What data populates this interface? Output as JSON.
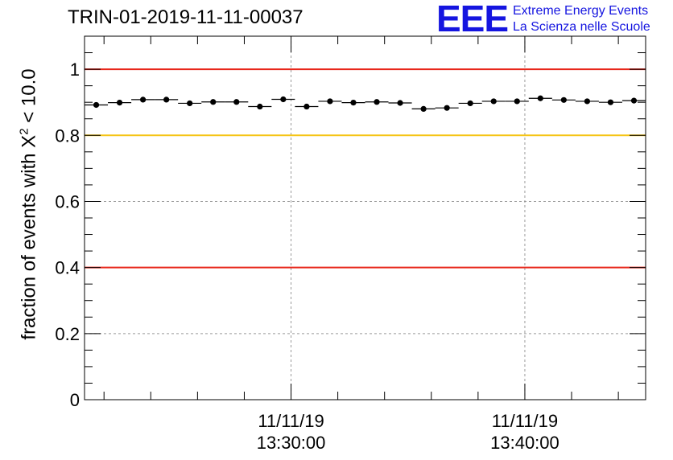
{
  "header": {
    "title": "TRIN-01-2019-11-11-00037"
  },
  "logo": {
    "mark": "EEE",
    "line1": "Extreme Energy Events",
    "line2": "La Scienza nelle Scuole"
  },
  "colors": {
    "red_line": "#e8261a",
    "yellow_line": "#f5c518",
    "markers": "#000000",
    "logo_blue": "#1515e0"
  },
  "chart_data": {
    "type": "scatter",
    "title": "TRIN-01-2019-11-11-00037",
    "ylabel_text": "fraction of events with X",
    "ylabel_sup": "2",
    "ylabel_suffix": " < 10.0",
    "xlabel": "",
    "xlim": [
      "2019-11-11 13:21:10",
      "2019-11-11 13:45:10"
    ],
    "ylim": [
      0,
      1.1
    ],
    "yticks": [
      0,
      0.2,
      0.4,
      0.6,
      0.8,
      1
    ],
    "ytick_labels": [
      "0",
      "0.2",
      "0.4",
      "0.6",
      "0.8",
      "1"
    ],
    "xtick_labels": [
      {
        "time": "2019-11-11 13:30:00",
        "line1": "11/11/19",
        "line2": "13:30:00"
      },
      {
        "time": "2019-11-11 13:40:00",
        "line1": "11/11/19",
        "line2": "13:40:00"
      }
    ],
    "grid": true,
    "reference_lines": [
      {
        "y": 1.0,
        "color": "red"
      },
      {
        "y": 0.8,
        "color": "yellow"
      },
      {
        "y": 0.4,
        "color": "red"
      }
    ],
    "bin_width_seconds": 60,
    "series": [
      {
        "x": [
          "13:21:40",
          "13:22:40",
          "13:23:40",
          "13:24:40",
          "13:25:40",
          "13:26:40",
          "13:27:40",
          "13:28:40",
          "13:29:40",
          "13:30:40",
          "13:31:40",
          "13:32:40",
          "13:33:40",
          "13:34:40",
          "13:35:40",
          "13:36:40",
          "13:37:40",
          "13:38:40",
          "13:39:40",
          "13:40:40",
          "13:41:40",
          "13:42:40",
          "13:43:40",
          "13:44:40"
        ],
        "y": [
          0.892,
          0.899,
          0.908,
          0.908,
          0.897,
          0.901,
          0.901,
          0.887,
          0.909,
          0.887,
          0.903,
          0.899,
          0.901,
          0.898,
          0.88,
          0.883,
          0.897,
          0.903,
          0.903,
          0.912,
          0.907,
          0.903,
          0.9,
          0.905
        ]
      }
    ]
  }
}
